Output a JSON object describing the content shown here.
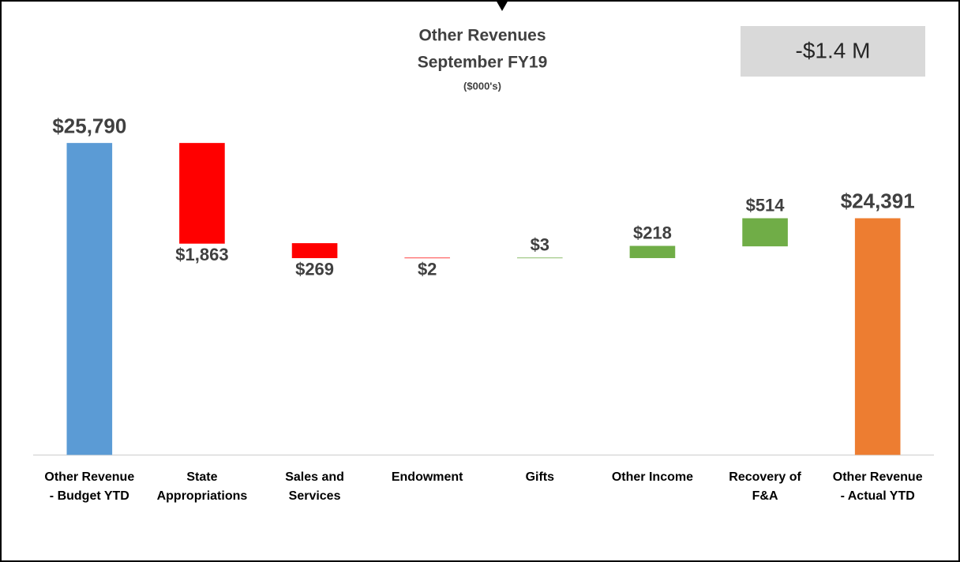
{
  "chart_data": {
    "type": "waterfall",
    "title": "Other Revenues",
    "subtitle": "September FY19",
    "unit_note": "($000's)",
    "annotation": "-$1.4 M",
    "categories": [
      [
        "Other Revenue",
        "- Budget YTD"
      ],
      [
        "State",
        "Appropriations"
      ],
      [
        "Sales and",
        "Services"
      ],
      [
        "Endowment"
      ],
      [
        "Gifts"
      ],
      [
        "Other Income"
      ],
      [
        "Recovery of",
        "F&A"
      ],
      [
        "Other Revenue",
        "- Actual YTD"
      ]
    ],
    "values": [
      25790,
      -1863,
      -269,
      -2,
      3,
      218,
      514,
      24391
    ],
    "value_labels": [
      "$25,790",
      "$1,863",
      "$269",
      "$2",
      "$3",
      "$218",
      "$514",
      "$24,391"
    ],
    "measure": [
      "total",
      "relative",
      "relative",
      "relative",
      "relative",
      "relative",
      "relative",
      "total"
    ],
    "colors": [
      "#5b9bd5",
      "#ff0000",
      "#ff0000",
      "#ff0000",
      "#70ad47",
      "#70ad47",
      "#70ad47",
      "#ed7d31"
    ],
    "ylim": [
      20000,
      27000
    ]
  }
}
